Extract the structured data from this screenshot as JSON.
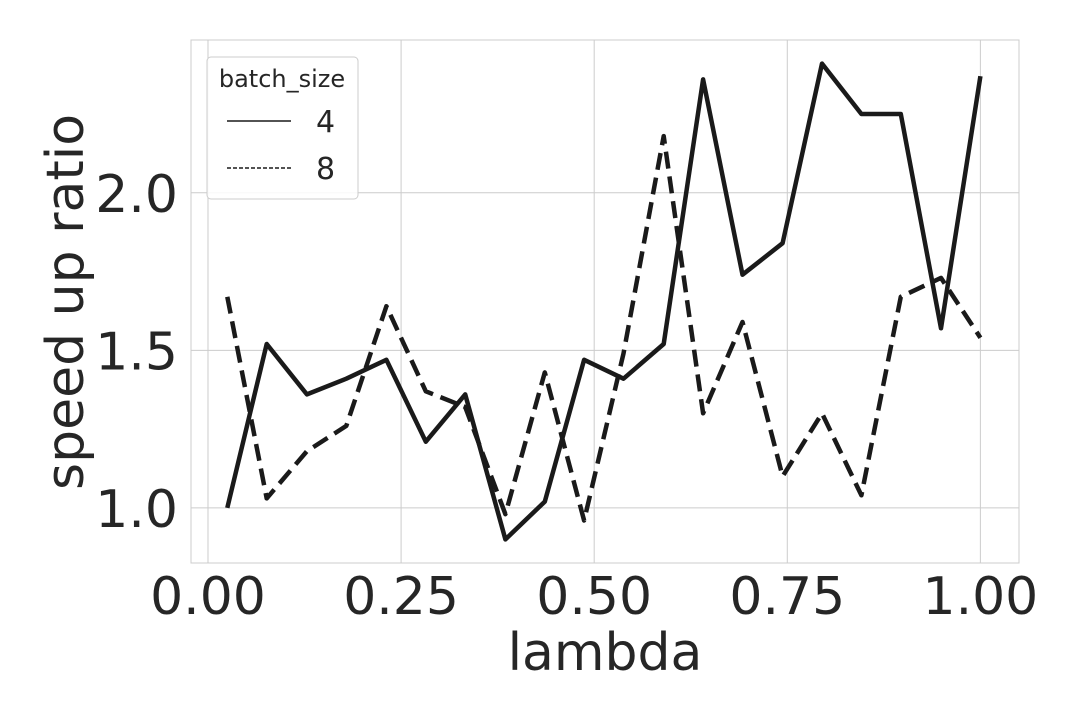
{
  "chart_data": {
    "type": "line",
    "xlabel": "lambda",
    "ylabel": "speed up ratio",
    "xlim": [
      -0.022,
      1.05
    ],
    "ylim": [
      0.825,
      2.485
    ],
    "xticks": [
      0.0,
      0.25,
      0.5,
      0.75,
      1.0
    ],
    "xtick_labels": [
      "0.00",
      "0.25",
      "0.50",
      "0.75",
      "1.00"
    ],
    "yticks": [
      1.0,
      1.5,
      2.0
    ],
    "ytick_labels": [
      "1.0",
      "1.5",
      "2.0"
    ],
    "grid": true,
    "legend": {
      "title": "batch_size",
      "position": "top-left"
    },
    "x": [
      0.025,
      0.076,
      0.128,
      0.179,
      0.231,
      0.282,
      0.333,
      0.385,
      0.436,
      0.487,
      0.538,
      0.59,
      0.641,
      0.692,
      0.744,
      0.795,
      0.846,
      0.897,
      0.949,
      1.0
    ],
    "series": [
      {
        "name": "4",
        "style": "solid",
        "color": "#1a1a1a",
        "values": [
          1.0,
          1.52,
          1.36,
          1.41,
          1.47,
          1.21,
          1.36,
          0.9,
          1.02,
          1.47,
          1.41,
          1.52,
          2.36,
          1.74,
          1.84,
          2.41,
          2.25,
          2.25,
          1.57,
          2.37
        ]
      },
      {
        "name": "8",
        "style": "dashed",
        "color": "#1a1a1a",
        "values": [
          1.67,
          1.03,
          1.18,
          1.26,
          1.64,
          1.37,
          1.32,
          0.98,
          1.43,
          0.96,
          1.49,
          2.18,
          1.3,
          1.59,
          1.1,
          1.3,
          1.04,
          1.67,
          1.73,
          1.54
        ]
      }
    ]
  }
}
